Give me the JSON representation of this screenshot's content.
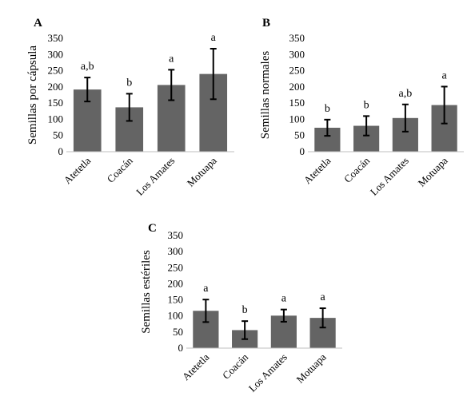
{
  "chart_data": [
    {
      "type": "bar",
      "panel_label": "A",
      "ylabel": "Semillas por cápsula",
      "ylim": [
        0,
        350
      ],
      "yticks": [
        0,
        50,
        100,
        150,
        200,
        250,
        300,
        350
      ],
      "categories": [
        "Atetetla",
        "Coacán",
        "Los Amates",
        "Motuapa"
      ],
      "values": [
        192,
        137,
        206,
        240
      ],
      "errors": [
        37,
        42,
        47,
        78
      ],
      "letters": [
        "a,b",
        "b",
        "a",
        "a"
      ],
      "bar_color": "#646464"
    },
    {
      "type": "bar",
      "panel_label": "B",
      "ylabel": "Semillas normales",
      "ylim": [
        0,
        350
      ],
      "yticks": [
        0,
        50,
        100,
        150,
        200,
        250,
        300,
        350
      ],
      "categories": [
        "Atetetla",
        "Coacán",
        "Los Amates",
        "Motuapa"
      ],
      "values": [
        74,
        80,
        104,
        144
      ],
      "errors": [
        25,
        30,
        42,
        57
      ],
      "letters": [
        "b",
        "b",
        "a,b",
        "a"
      ],
      "bar_color": "#646464"
    },
    {
      "type": "bar",
      "panel_label": "C",
      "ylabel": "Semillas estériles",
      "ylim": [
        0,
        350
      ],
      "yticks": [
        0,
        50,
        100,
        150,
        200,
        250,
        300,
        350
      ],
      "categories": [
        "Atetetla",
        "Coacán",
        "Los Amates",
        "Motuapa"
      ],
      "values": [
        116,
        56,
        101,
        94
      ],
      "errors": [
        35,
        28,
        19,
        30
      ],
      "letters": [
        "a",
        "b",
        "a",
        "a"
      ],
      "bar_color": "#646464"
    }
  ]
}
